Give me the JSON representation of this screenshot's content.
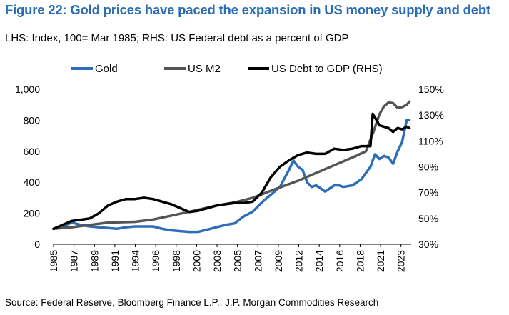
{
  "title": "Figure 22: Gold prices have paced the expansion in US money supply and debt",
  "subtitle": "LHS: Index, 100= Mar 1985; RHS: US Federal debt as a percent of GDP",
  "source": "Source: Federal Reserve, Bloomberg Finance L.P., J.P. Morgan Commodities Research",
  "chart_data": {
    "type": "line",
    "x_ticks": [
      "1985",
      "1987",
      "1989",
      "1991",
      "1994",
      "1996",
      "1998",
      "2000",
      "2003",
      "2005",
      "2007",
      "2009",
      "2012",
      "2014",
      "2016",
      "2018",
      "2021",
      "2023"
    ],
    "x_range": [
      1985,
      2024.5
    ],
    "y_left": {
      "range": [
        0,
        1000
      ],
      "ticks": [
        "0",
        "200",
        "400",
        "600",
        "800",
        "1,000"
      ]
    },
    "y_right": {
      "range": [
        30,
        150
      ],
      "ticks": [
        "30%",
        "50%",
        "70%",
        "90%",
        "110%",
        "130%",
        "150%"
      ]
    },
    "legend_placement": "top",
    "series": [
      {
        "name": "Gold",
        "axis": "left",
        "color": "#2e6db8",
        "points": [
          [
            1985,
            100
          ],
          [
            1986,
            115
          ],
          [
            1987,
            140
          ],
          [
            1988,
            125
          ],
          [
            1989,
            115
          ],
          [
            1990,
            110
          ],
          [
            1991,
            105
          ],
          [
            1992,
            100
          ],
          [
            1993,
            110
          ],
          [
            1994,
            115
          ],
          [
            1995,
            115
          ],
          [
            1996,
            115
          ],
          [
            1997,
            100
          ],
          [
            1998,
            90
          ],
          [
            1999,
            85
          ],
          [
            2000,
            80
          ],
          [
            2001,
            80
          ],
          [
            2002,
            95
          ],
          [
            2003,
            110
          ],
          [
            2004,
            125
          ],
          [
            2005,
            135
          ],
          [
            2006,
            180
          ],
          [
            2007,
            210
          ],
          [
            2008,
            270
          ],
          [
            2009,
            320
          ],
          [
            2010,
            370
          ],
          [
            2011,
            480
          ],
          [
            2011.5,
            540
          ],
          [
            2012,
            500
          ],
          [
            2012.5,
            480
          ],
          [
            2013,
            400
          ],
          [
            2013.5,
            370
          ],
          [
            2014,
            380
          ],
          [
            2015,
            340
          ],
          [
            2016,
            380
          ],
          [
            2016.5,
            380
          ],
          [
            2017,
            370
          ],
          [
            2018,
            380
          ],
          [
            2019,
            420
          ],
          [
            2019.5,
            460
          ],
          [
            2020,
            500
          ],
          [
            2020.5,
            580
          ],
          [
            2021,
            550
          ],
          [
            2021.5,
            570
          ],
          [
            2022,
            560
          ],
          [
            2022.5,
            520
          ],
          [
            2023,
            600
          ],
          [
            2023.5,
            660
          ],
          [
            2024,
            800
          ],
          [
            2024.3,
            800
          ]
        ]
      },
      {
        "name": "US M2",
        "axis": "left",
        "color": "#555555",
        "points": [
          [
            1985,
            100
          ],
          [
            1987,
            110
          ],
          [
            1989,
            125
          ],
          [
            1991,
            140
          ],
          [
            1994,
            145
          ],
          [
            1996,
            160
          ],
          [
            1998,
            185
          ],
          [
            2000,
            210
          ],
          [
            2003,
            250
          ],
          [
            2005,
            270
          ],
          [
            2007,
            300
          ],
          [
            2009,
            345
          ],
          [
            2012,
            410
          ],
          [
            2014,
            460
          ],
          [
            2016,
            510
          ],
          [
            2018,
            560
          ],
          [
            2019.5,
            600
          ],
          [
            2020.3,
            720
          ],
          [
            2021,
            840
          ],
          [
            2021.5,
            890
          ],
          [
            2022,
            915
          ],
          [
            2022.5,
            910
          ],
          [
            2023,
            880
          ],
          [
            2023.5,
            885
          ],
          [
            2024,
            900
          ],
          [
            2024.3,
            920
          ]
        ]
      },
      {
        "name": "US Debt to GDP (RHS)",
        "axis": "right",
        "color": "#000000",
        "points": [
          [
            1985,
            42
          ],
          [
            1986,
            45
          ],
          [
            1987,
            48
          ],
          [
            1988,
            49
          ],
          [
            1989,
            50
          ],
          [
            1990,
            54
          ],
          [
            1991,
            60
          ],
          [
            1992,
            63
          ],
          [
            1993,
            65
          ],
          [
            1994,
            65
          ],
          [
            1995,
            66
          ],
          [
            1996,
            65
          ],
          [
            1997,
            63
          ],
          [
            1998,
            61
          ],
          [
            1999,
            58
          ],
          [
            2000,
            55
          ],
          [
            2001,
            56
          ],
          [
            2002,
            58
          ],
          [
            2003,
            60
          ],
          [
            2004,
            61
          ],
          [
            2005,
            62
          ],
          [
            2006,
            62
          ],
          [
            2007,
            63
          ],
          [
            2008,
            70
          ],
          [
            2009,
            82
          ],
          [
            2010,
            90
          ],
          [
            2011,
            95
          ],
          [
            2012,
            99
          ],
          [
            2013,
            101
          ],
          [
            2014,
            100
          ],
          [
            2015,
            100
          ],
          [
            2016,
            104
          ],
          [
            2017,
            103
          ],
          [
            2018,
            104
          ],
          [
            2019,
            106
          ],
          [
            2020,
            106
          ],
          [
            2020.25,
            131
          ],
          [
            2020.6,
            127
          ],
          [
            2021,
            122
          ],
          [
            2022,
            120
          ],
          [
            2022.5,
            117
          ],
          [
            2023,
            120
          ],
          [
            2023.5,
            119
          ],
          [
            2024,
            121
          ],
          [
            2024.3,
            120
          ]
        ]
      }
    ]
  }
}
